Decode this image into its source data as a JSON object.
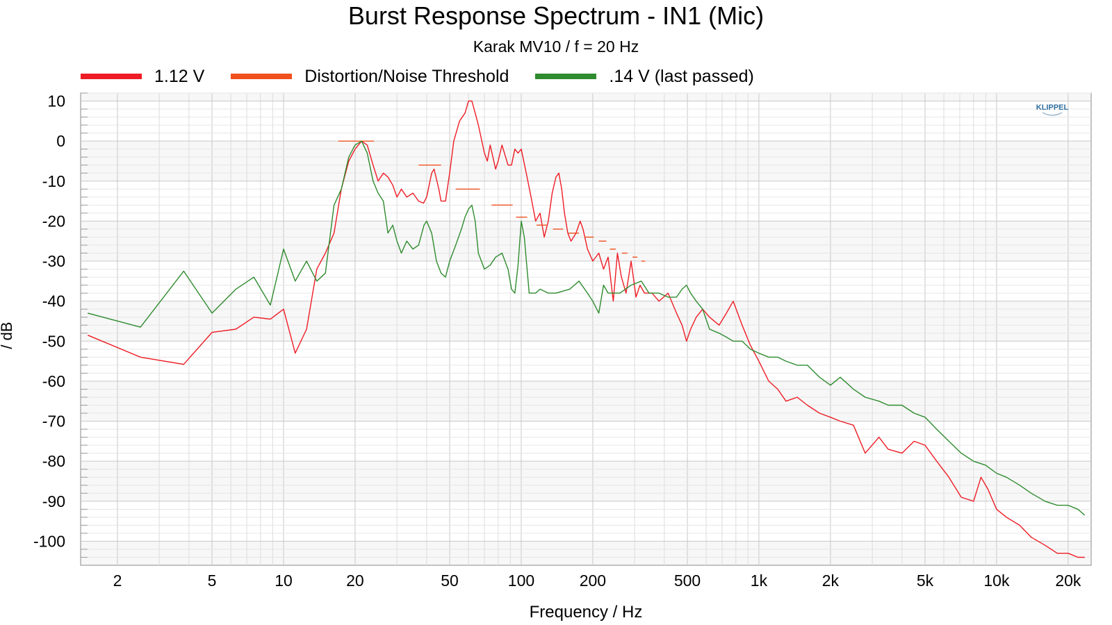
{
  "chart_data": {
    "type": "line",
    "title": "Burst Response Spectrum - IN1 (Mic)",
    "subtitle": "Karak MV10 / f = 20 Hz",
    "xlabel": "Frequency / Hz",
    "ylabel": "/ dB",
    "x_scale": "log",
    "xlim": [
      1.4,
      25000
    ],
    "ylim": [
      -106,
      12
    ],
    "x_ticks": [
      2,
      5,
      10,
      20,
      50,
      100,
      200,
      500,
      1000,
      2000,
      5000,
      10000,
      20000
    ],
    "x_tick_labels": [
      "2",
      "5",
      "10",
      "20",
      "50",
      "100",
      "200",
      "500",
      "1k",
      "2k",
      "5k",
      "10k",
      "20k"
    ],
    "y_ticks": [
      10,
      0,
      -10,
      -20,
      -30,
      -40,
      -50,
      -60,
      -70,
      -80,
      -90,
      -100
    ],
    "y_tick_labels": [
      "10",
      "0",
      "-10",
      "-20",
      "-30",
      "-40",
      "-50",
      "-60",
      "-70",
      "-80",
      "-90",
      "-100"
    ],
    "grid": true,
    "legend_position": "top-left",
    "logo_text": "KLIPPEL",
    "series": [
      {
        "name": "1.12 V",
        "color": "#ee1c24",
        "style": "line",
        "points": [
          [
            1.5,
            -48.5
          ],
          [
            2.5,
            -54
          ],
          [
            3.8,
            -55.8
          ],
          [
            5,
            -47.8
          ],
          [
            6.3,
            -47
          ],
          [
            7.5,
            -44
          ],
          [
            8.8,
            -44.5
          ],
          [
            10,
            -42
          ],
          [
            11.2,
            -53
          ],
          [
            12.5,
            -47
          ],
          [
            13.8,
            -32
          ],
          [
            15,
            -28
          ],
          [
            16.3,
            -23
          ],
          [
            17.5,
            -12
          ],
          [
            18.8,
            -5
          ],
          [
            20,
            -2
          ],
          [
            21.3,
            0
          ],
          [
            22.5,
            -1
          ],
          [
            23.8,
            -6
          ],
          [
            25,
            -10
          ],
          [
            26.3,
            -8
          ],
          [
            27.5,
            -9
          ],
          [
            28.8,
            -11
          ],
          [
            30,
            -14
          ],
          [
            31.3,
            -12
          ],
          [
            33,
            -14
          ],
          [
            35,
            -13
          ],
          [
            37,
            -15
          ],
          [
            38.8,
            -15.5
          ],
          [
            40,
            -14
          ],
          [
            42,
            -8
          ],
          [
            43,
            -7
          ],
          [
            45,
            -12
          ],
          [
            46,
            -15
          ],
          [
            48,
            -15
          ],
          [
            50,
            -8
          ],
          [
            52,
            0
          ],
          [
            55,
            5
          ],
          [
            58,
            7
          ],
          [
            60,
            10
          ],
          [
            62,
            10
          ],
          [
            64,
            7
          ],
          [
            66,
            4
          ],
          [
            70,
            -3
          ],
          [
            72,
            -5
          ],
          [
            74,
            -1
          ],
          [
            76,
            -4
          ],
          [
            78,
            -7
          ],
          [
            80,
            -5
          ],
          [
            83,
            -1
          ],
          [
            85,
            -3
          ],
          [
            88,
            -6
          ],
          [
            91,
            -6
          ],
          [
            94,
            -2
          ],
          [
            97,
            -3
          ],
          [
            100,
            -2
          ],
          [
            105,
            -8
          ],
          [
            110,
            -14
          ],
          [
            115,
            -20
          ],
          [
            120,
            -18
          ],
          [
            125,
            -24
          ],
          [
            130,
            -20
          ],
          [
            135,
            -13
          ],
          [
            140,
            -9
          ],
          [
            144,
            -8
          ],
          [
            148,
            -12
          ],
          [
            152,
            -18
          ],
          [
            157,
            -23
          ],
          [
            162,
            -25
          ],
          [
            170,
            -23
          ],
          [
            177,
            -20
          ],
          [
            182,
            -22
          ],
          [
            190,
            -27
          ],
          [
            200,
            -30
          ],
          [
            212,
            -28
          ],
          [
            222,
            -32
          ],
          [
            232,
            -29
          ],
          [
            244,
            -40
          ],
          [
            254,
            -28
          ],
          [
            264,
            -34
          ],
          [
            276,
            -38
          ],
          [
            290,
            -30
          ],
          [
            304,
            -39
          ],
          [
            316,
            -36
          ],
          [
            330,
            -38
          ],
          [
            355,
            -38
          ],
          [
            380,
            -40
          ],
          [
            415,
            -38
          ],
          [
            450,
            -43
          ],
          [
            475,
            -46
          ],
          [
            496,
            -50
          ],
          [
            516,
            -47
          ],
          [
            545,
            -44
          ],
          [
            580,
            -42
          ],
          [
            620,
            -44
          ],
          [
            680,
            -46
          ],
          [
            730,
            -43
          ],
          [
            780,
            -40
          ],
          [
            850,
            -46
          ],
          [
            920,
            -51
          ],
          [
            1000,
            -55
          ],
          [
            1100,
            -60
          ],
          [
            1200,
            -62
          ],
          [
            1300,
            -65
          ],
          [
            1450,
            -64
          ],
          [
            1600,
            -66
          ],
          [
            1800,
            -68
          ],
          [
            2000,
            -69
          ],
          [
            2200,
            -70
          ],
          [
            2500,
            -71
          ],
          [
            2800,
            -78
          ],
          [
            3200,
            -74
          ],
          [
            3500,
            -77
          ],
          [
            4000,
            -78
          ],
          [
            4500,
            -75
          ],
          [
            5000,
            -76
          ],
          [
            5600,
            -80
          ],
          [
            6300,
            -84
          ],
          [
            7100,
            -89
          ],
          [
            8000,
            -90
          ],
          [
            8600,
            -84
          ],
          [
            9200,
            -87
          ],
          [
            10000,
            -92
          ],
          [
            11000,
            -94
          ],
          [
            12500,
            -96
          ],
          [
            14000,
            -99
          ],
          [
            16000,
            -101
          ],
          [
            18000,
            -103
          ],
          [
            20000,
            -103
          ],
          [
            22000,
            -104
          ],
          [
            23500,
            -104
          ]
        ]
      },
      {
        "name": "Distortion/Noise Threshold",
        "color": "#f0501e",
        "style": "segments",
        "segments": [
          [
            17,
            24,
            0
          ],
          [
            37,
            46,
            -6
          ],
          [
            53,
            67,
            -12
          ],
          [
            75,
            92,
            -16
          ],
          [
            95,
            106,
            -19
          ],
          [
            116,
            128,
            -21
          ],
          [
            136,
            150,
            -22
          ],
          [
            158,
            175,
            -23
          ],
          [
            185,
            202,
            -24
          ],
          [
            212,
            228,
            -25
          ],
          [
            236,
            250,
            -27
          ],
          [
            265,
            280,
            -28
          ],
          [
            294,
            308,
            -29
          ],
          [
            320,
            332,
            -30
          ]
        ]
      },
      {
        "name": ".14 V (last passed)",
        "color": "#2e8b2e",
        "style": "line",
        "points": [
          [
            1.5,
            -43
          ],
          [
            2.5,
            -46.5
          ],
          [
            3.8,
            -32.5
          ],
          [
            5,
            -43
          ],
          [
            6.3,
            -37
          ],
          [
            7.5,
            -34
          ],
          [
            8.8,
            -41
          ],
          [
            10,
            -27
          ],
          [
            11.2,
            -35
          ],
          [
            12.5,
            -30
          ],
          [
            13.8,
            -35
          ],
          [
            15,
            -33
          ],
          [
            16.3,
            -16
          ],
          [
            17.5,
            -12
          ],
          [
            18.8,
            -4
          ],
          [
            20,
            -1
          ],
          [
            21.3,
            0
          ],
          [
            22.5,
            -3
          ],
          [
            23.8,
            -10
          ],
          [
            25,
            -13
          ],
          [
            26.3,
            -15
          ],
          [
            27.5,
            -23
          ],
          [
            28.8,
            -21
          ],
          [
            30,
            -25
          ],
          [
            31.3,
            -28
          ],
          [
            33,
            -25
          ],
          [
            35,
            -27
          ],
          [
            37,
            -26
          ],
          [
            39,
            -21
          ],
          [
            40,
            -20
          ],
          [
            42,
            -23
          ],
          [
            44,
            -30
          ],
          [
            46,
            -33
          ],
          [
            48,
            -34
          ],
          [
            50,
            -30
          ],
          [
            53,
            -26
          ],
          [
            56,
            -22
          ],
          [
            58,
            -19
          ],
          [
            60,
            -17
          ],
          [
            62,
            -16
          ],
          [
            64,
            -20
          ],
          [
            66,
            -28
          ],
          [
            70,
            -32
          ],
          [
            74,
            -31
          ],
          [
            78,
            -29
          ],
          [
            83,
            -28
          ],
          [
            88,
            -32
          ],
          [
            91,
            -37
          ],
          [
            94,
            -38
          ],
          [
            97,
            -31
          ],
          [
            100,
            -20
          ],
          [
            103,
            -24
          ],
          [
            108,
            -38
          ],
          [
            115,
            -38
          ],
          [
            120,
            -37
          ],
          [
            130,
            -38
          ],
          [
            140,
            -38
          ],
          [
            160,
            -37
          ],
          [
            175,
            -35
          ],
          [
            190,
            -38
          ],
          [
            200,
            -40
          ],
          [
            212,
            -43
          ],
          [
            222,
            -36
          ],
          [
            232,
            -38
          ],
          [
            260,
            -38
          ],
          [
            290,
            -36
          ],
          [
            320,
            -35
          ],
          [
            345,
            -38
          ],
          [
            380,
            -38
          ],
          [
            415,
            -39
          ],
          [
            450,
            -39
          ],
          [
            475,
            -37
          ],
          [
            496,
            -36
          ],
          [
            516,
            -38
          ],
          [
            545,
            -40
          ],
          [
            580,
            -42
          ],
          [
            620,
            -47
          ],
          [
            680,
            -48
          ],
          [
            730,
            -49
          ],
          [
            780,
            -50
          ],
          [
            850,
            -50
          ],
          [
            920,
            -52
          ],
          [
            1000,
            -53
          ],
          [
            1100,
            -54
          ],
          [
            1200,
            -54
          ],
          [
            1300,
            -55
          ],
          [
            1450,
            -56
          ],
          [
            1600,
            -56
          ],
          [
            1800,
            -59
          ],
          [
            2000,
            -61
          ],
          [
            2200,
            -59
          ],
          [
            2500,
            -62
          ],
          [
            2800,
            -64
          ],
          [
            3200,
            -65
          ],
          [
            3500,
            -66
          ],
          [
            4000,
            -66
          ],
          [
            4500,
            -68
          ],
          [
            5000,
            -69
          ],
          [
            5600,
            -72
          ],
          [
            6300,
            -75
          ],
          [
            7100,
            -78
          ],
          [
            8000,
            -80
          ],
          [
            9000,
            -81
          ],
          [
            10000,
            -83
          ],
          [
            11000,
            -84
          ],
          [
            12500,
            -86
          ],
          [
            14000,
            -88
          ],
          [
            16000,
            -90
          ],
          [
            18000,
            -91
          ],
          [
            20000,
            -91
          ],
          [
            22000,
            -92
          ],
          [
            23500,
            -93.5
          ]
        ]
      }
    ]
  }
}
